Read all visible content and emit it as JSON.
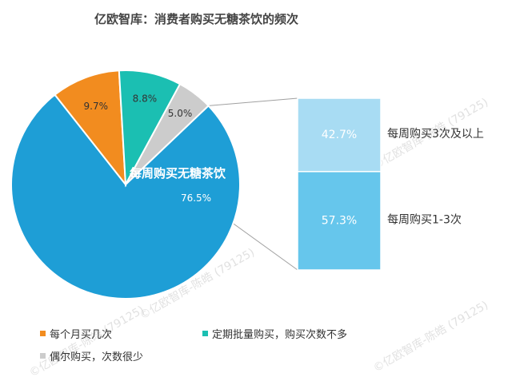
{
  "chart_data": {
    "type": "pie",
    "title": "亿欧智库：消费者购买无糖茶饮的频次",
    "slices": [
      {
        "name": "每周购买无糖茶饮",
        "value": 76.5,
        "label": "76.5%",
        "color": "#1E9ED6"
      },
      {
        "name": "每个月买几次",
        "value": 9.7,
        "label": "9.7%",
        "color": "#F28C1F"
      },
      {
        "name": "定期批量购买，购买次数不多",
        "value": 8.8,
        "label": "8.8%",
        "color": "#1BBFB2"
      },
      {
        "name": "偶尔购买，次数很少",
        "value": 5.0,
        "label": "5.0%",
        "color": "#CCCCCC"
      }
    ],
    "center_label": "每周购买无糖茶饮",
    "breakdown": {
      "type": "stacked_bar",
      "of": "每周购买无糖茶饮",
      "segments": [
        {
          "name": "每周购买3次及以上",
          "value": 42.7,
          "label": "42.7%",
          "color": "#A8DCF3"
        },
        {
          "name": "每周购买1-3次",
          "value": 57.3,
          "label": "57.3%",
          "color": "#66C6EC"
        }
      ]
    },
    "legend": {
      "placement": "bottom-left",
      "items": [
        "每个月买几次",
        "定期批量购买，购买次数不多",
        "偶尔购买，次数很少"
      ]
    }
  },
  "watermark": "©亿欧智库-陈皓 (79125)"
}
